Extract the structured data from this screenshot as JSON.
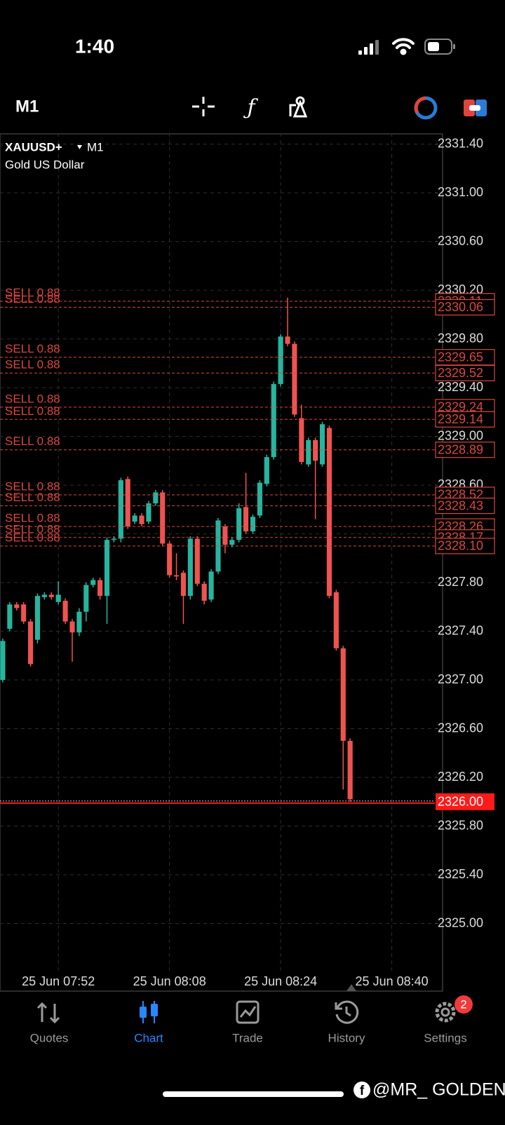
{
  "status_bar": {
    "time": "1:40"
  },
  "toolbar": {
    "timeframe": "M1"
  },
  "chart_data": {
    "type": "candlestick",
    "symbol": "XAUUSD+",
    "timeframe": "M1",
    "description": "Gold US Dollar",
    "x": [
      464,
      465,
      466,
      467,
      468,
      469,
      470,
      471,
      472,
      473,
      474,
      475,
      476,
      477,
      478,
      479,
      480,
      481,
      482,
      483,
      484,
      485,
      486,
      487,
      488,
      489,
      490,
      491,
      492,
      493,
      494,
      495,
      496,
      497,
      498,
      499,
      500,
      501,
      502,
      503,
      504,
      505,
      506,
      507,
      508,
      509,
      510,
      511,
      512,
      513,
      514
    ],
    "open": [
      2327.0,
      2327.42,
      2327.62,
      2327.62,
      2327.48,
      2327.33,
      2327.68,
      2327.7,
      2327.64,
      2327.65,
      2327.48,
      2327.39,
      2327.56,
      2327.78,
      2327.82,
      2327.69,
      2328.15,
      2328.16,
      2328.65,
      2328.3,
      2328.35,
      2328.3,
      2328.45,
      2328.54,
      2328.12,
      2327.86,
      2327.88,
      2327.69,
      2328.16,
      2327.79,
      2327.66,
      2327.89,
      2328.26,
      2328.11,
      2328.15,
      2328.42,
      2328.22,
      2328.35,
      2328.61,
      2328.83,
      2329.43,
      2329.82,
      2329.76,
      2329.15,
      2328.77,
      2328.97,
      2328.77,
      2329.07,
      2327.72,
      2327.26,
      2326.5
    ],
    "high": [
      2327.34,
      2327.64,
      2327.64,
      2327.64,
      2327.5,
      2327.71,
      2327.72,
      2327.72,
      2327.81,
      2327.67,
      2327.5,
      2327.59,
      2327.8,
      2327.84,
      2327.84,
      2328.17,
      2328.18,
      2328.66,
      2328.67,
      2328.37,
      2328.37,
      2328.47,
      2328.56,
      2328.56,
      2328.14,
      2328.04,
      2327.9,
      2328.18,
      2328.18,
      2327.81,
      2327.91,
      2328.33,
      2328.28,
      2328.17,
      2328.45,
      2328.7,
      2328.36,
      2328.64,
      2328.85,
      2329.45,
      2329.84,
      2330.14,
      2329.78,
      2329.26,
      2328.99,
      2328.99,
      2329.12,
      2329.09,
      2327.74,
      2327.28,
      2326.52
    ],
    "low": [
      2326.98,
      2327.4,
      2327.57,
      2327.46,
      2327.11,
      2327.3,
      2327.66,
      2327.66,
      2327.62,
      2327.46,
      2327.15,
      2327.36,
      2327.48,
      2327.76,
      2327.66,
      2327.46,
      2328.13,
      2328.13,
      2328.24,
      2328.28,
      2328.26,
      2328.28,
      2328.43,
      2328.1,
      2327.84,
      2327.82,
      2327.46,
      2327.66,
      2327.77,
      2327.62,
      2327.64,
      2327.87,
      2328.04,
      2328.09,
      2328.13,
      2328.2,
      2328.2,
      2328.33,
      2328.59,
      2328.81,
      2329.41,
      2329.74,
      2329.16,
      2328.77,
      2328.75,
      2328.32,
      2328.75,
      2327.67,
      2327.24,
      2326.1,
      2326.0
    ],
    "close": [
      2327.32,
      2327.62,
      2327.59,
      2327.48,
      2327.13,
      2327.69,
      2327.7,
      2327.68,
      2327.7,
      2327.48,
      2327.39,
      2327.56,
      2327.78,
      2327.82,
      2327.69,
      2328.15,
      2328.16,
      2328.64,
      2328.26,
      2328.35,
      2328.28,
      2328.45,
      2328.54,
      2328.12,
      2327.86,
      2327.85,
      2327.69,
      2328.16,
      2327.79,
      2327.65,
      2327.89,
      2328.31,
      2328.11,
      2328.15,
      2328.41,
      2328.22,
      2328.34,
      2328.62,
      2328.83,
      2329.43,
      2329.82,
      2329.76,
      2329.18,
      2328.79,
      2328.97,
      2328.8,
      2329.1,
      2327.69,
      2327.26,
      2326.5,
      2326.02
    ],
    "up_color": "#26b59f",
    "down_color": "#ef5350",
    "xlim": [
      463.6,
      526.2
    ],
    "ylim": [
      2324.6,
      2331.49
    ],
    "xticks": [
      {
        "value": 472,
        "label": "25 Jun 07:52"
      },
      {
        "value": 488,
        "label": "25 Jun 08:08"
      },
      {
        "value": 504,
        "label": "25 Jun 08:24"
      },
      {
        "value": 520,
        "label": "25 Jun 08:40"
      }
    ],
    "yticks": [
      {
        "value": 2331.4,
        "label": "2331.40"
      },
      {
        "value": 2331.0,
        "label": "2331.00"
      },
      {
        "value": 2330.6,
        "label": "2330.60"
      },
      {
        "value": 2330.2,
        "label": "2330.20"
      },
      {
        "value": 2329.8,
        "label": "2329.80"
      },
      {
        "value": 2329.4,
        "label": "2329.40"
      },
      {
        "value": 2329.0,
        "label": "2329.00"
      },
      {
        "value": 2328.6,
        "label": "2328.60"
      },
      {
        "value": 2328.2,
        "label": "2328.20"
      },
      {
        "value": 2327.8,
        "label": "2327.80"
      },
      {
        "value": 2327.4,
        "label": "2327.40"
      },
      {
        "value": 2327.0,
        "label": "2327.00"
      },
      {
        "value": 2326.6,
        "label": "2326.60"
      },
      {
        "value": 2326.2,
        "label": "2326.20"
      },
      {
        "value": 2325.8,
        "label": "2325.80"
      },
      {
        "value": 2325.4,
        "label": "2325.40"
      },
      {
        "value": 2325.0,
        "label": "2325.00"
      }
    ],
    "grid": true,
    "orders": [
      {
        "label": "SELL 0.88",
        "price": 2330.11
      },
      {
        "label": "SELL 0.88",
        "price": 2330.06
      },
      {
        "label": "SELL 0.88",
        "price": 2329.65
      },
      {
        "label": "SELL 0.88",
        "price": 2329.52
      },
      {
        "label": "SELL 0.88",
        "price": 2329.24
      },
      {
        "label": "SELL 0.88",
        "price": 2329.14
      },
      {
        "label": "SELL 0.88",
        "price": 2328.89
      },
      {
        "label": "SELL 0.88",
        "price": 2328.52
      },
      {
        "label": "SELL 0.88",
        "price": 2328.43
      },
      {
        "label": "SELL 0.88",
        "price": 2328.26
      },
      {
        "label": "SELL 0.88",
        "price": 2328.17
      },
      {
        "label": "SELL 0.88",
        "price": {
          "value": 2328.1,
          "label": "2328.10"
        }
      }
    ],
    "order_color": "#d9473f",
    "current_price": {
      "value": 2326,
      "label": "2326.00"
    },
    "current_price_color": "#ff1a1a"
  },
  "tab_bar": {
    "tabs": [
      "Quotes",
      "Chart",
      "Trade",
      "History",
      "Settings"
    ],
    "active": 1,
    "settings_badge": "2"
  },
  "watermark": "@MR_ GOLDEN"
}
